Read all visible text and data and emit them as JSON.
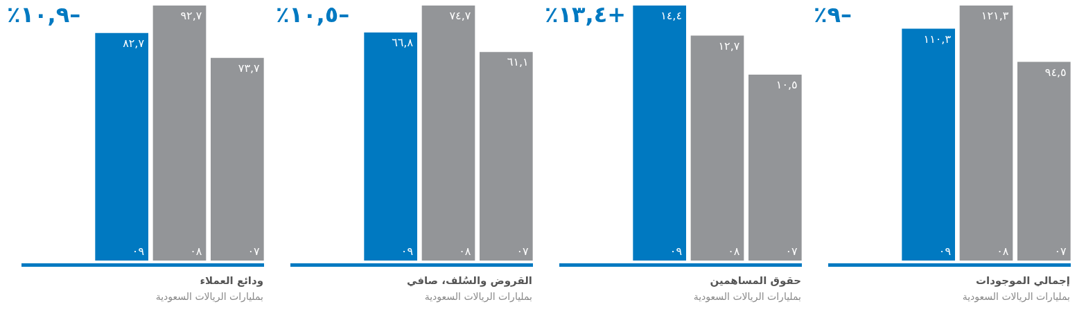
{
  "chart_data": [
    {
      "type": "bar",
      "title": "إجمالي الموجودات",
      "subtitle": "بمليارات الريالات السعودية",
      "annotations": [
        "٪٩–"
      ],
      "categories": [
        "٠٩",
        "٠٨",
        "٠٧"
      ],
      "values": [
        110.3,
        121.3,
        94.5
      ],
      "colors": [
        "#0079c1",
        "#939598",
        "#939598"
      ],
      "value_labels": [
        "١١٠,٣",
        "١٢١,٣",
        "٩٤,٥"
      ],
      "tick_labels": "x"
    },
    {
      "type": "bar",
      "title": "حقوق المساهمين",
      "subtitle": "بمليارات الريالات السعودية",
      "annotations": [
        "٪١٣,٤+"
      ],
      "categories": [
        "٠٩",
        "٠٨",
        "٠٧"
      ],
      "values": [
        14.4,
        12.7,
        10.5
      ],
      "colors": [
        "#0079c1",
        "#939598",
        "#939598"
      ],
      "value_labels": [
        "١٤,٤",
        "١٢,٧",
        "١٠,٥"
      ],
      "tick_labels": "x"
    },
    {
      "type": "bar",
      "title": "القروض والسُلف، صافي",
      "subtitle": "بمليارات الريالات السعودية",
      "annotations": [
        "٪١٠,٥–"
      ],
      "categories": [
        "٠٩",
        "٠٨",
        "٠٧"
      ],
      "values": [
        66.8,
        74.7,
        61.1
      ],
      "colors": [
        "#0079c1",
        "#939598",
        "#939598"
      ],
      "value_labels": [
        "٦٦,٨",
        "٧٤,٧",
        "٦١,١"
      ],
      "tick_labels": "x"
    },
    {
      "type": "bar",
      "title": "ودائع العملاء",
      "subtitle": "بمليارات الريالات السعودية",
      "annotations": [
        "٪١٠,٩–"
      ],
      "categories": [
        "٠٩",
        "٠٨",
        "٠٧"
      ],
      "values": [
        82.7,
        92.7,
        73.7
      ],
      "colors": [
        "#0079c1",
        "#939598",
        "#939598"
      ],
      "value_labels": [
        "٨٢,٧",
        "٩٢,٧",
        "٧٣,٧"
      ],
      "tick_labels": "x"
    }
  ]
}
